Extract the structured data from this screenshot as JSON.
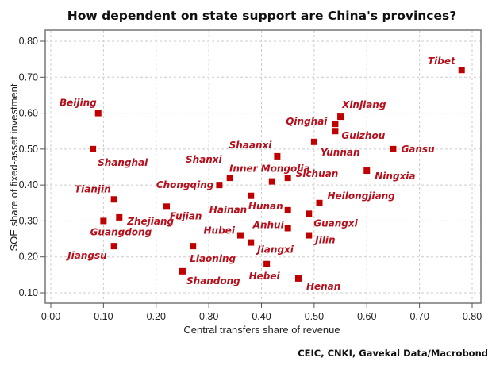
{
  "chart_data": {
    "type": "scatter",
    "title": "How dependent on state support are China's provinces?",
    "xlabel": "Central transfers share of revenue",
    "ylabel": "SOE share of fixed-asset investment",
    "source": "CEIC, CNKI, Gavekal Data/Macrobond",
    "xlim": [
      0,
      0.8
    ],
    "ylim": [
      0.1,
      0.8
    ],
    "xticks": [
      "0.00",
      "0.10",
      "0.20",
      "0.30",
      "0.40",
      "0.50",
      "0.60",
      "0.70",
      "0.80"
    ],
    "yticks": [
      "0.10",
      "0.20",
      "0.30",
      "0.40",
      "0.50",
      "0.60",
      "0.70",
      "0.80"
    ],
    "grid": true,
    "marker_color": "#c00000",
    "label_color": "#b5101c",
    "points": [
      {
        "name": "Tibet",
        "x": 0.78,
        "y": 0.72
      },
      {
        "name": "Beijing",
        "x": 0.09,
        "y": 0.6
      },
      {
        "name": "Xinjiang",
        "x": 0.55,
        "y": 0.59
      },
      {
        "name": "Qinghai",
        "x": 0.54,
        "y": 0.57
      },
      {
        "name": "Guizhou",
        "x": 0.54,
        "y": 0.55
      },
      {
        "name": "Shanghai",
        "x": 0.08,
        "y": 0.5
      },
      {
        "name": "Yunnan",
        "x": 0.5,
        "y": 0.52
      },
      {
        "name": "Gansu",
        "x": 0.65,
        "y": 0.5
      },
      {
        "name": "Shaanxi",
        "x": 0.43,
        "y": 0.48
      },
      {
        "name": "Ningxia",
        "x": 0.6,
        "y": 0.44
      },
      {
        "name": "Shanxi",
        "x": 0.34,
        "y": 0.42
      },
      {
        "name": "Inner Mongolia",
        "x": 0.42,
        "y": 0.41
      },
      {
        "name": "Sichuan",
        "x": 0.45,
        "y": 0.42
      },
      {
        "name": "Chongqing",
        "x": 0.32,
        "y": 0.4
      },
      {
        "name": "Tianjin",
        "x": 0.12,
        "y": 0.36
      },
      {
        "name": "Hainan",
        "x": 0.38,
        "y": 0.37
      },
      {
        "name": "Heilongjiang",
        "x": 0.51,
        "y": 0.35
      },
      {
        "name": "Hunan",
        "x": 0.45,
        "y": 0.33
      },
      {
        "name": "Fujian",
        "x": 0.22,
        "y": 0.34
      },
      {
        "name": "Zhejiang",
        "x": 0.13,
        "y": 0.31
      },
      {
        "name": "Guangdong",
        "x": 0.1,
        "y": 0.3
      },
      {
        "name": "Guangxi",
        "x": 0.49,
        "y": 0.32
      },
      {
        "name": "Anhui",
        "x": 0.45,
        "y": 0.28
      },
      {
        "name": "Jilin",
        "x": 0.49,
        "y": 0.26
      },
      {
        "name": "Hubei",
        "x": 0.36,
        "y": 0.26
      },
      {
        "name": "Jiangxi",
        "x": 0.38,
        "y": 0.24
      },
      {
        "name": "Jiangsu",
        "x": 0.12,
        "y": 0.23
      },
      {
        "name": "Liaoning",
        "x": 0.27,
        "y": 0.23
      },
      {
        "name": "Hebei",
        "x": 0.41,
        "y": 0.18
      },
      {
        "name": "Shandong",
        "x": 0.25,
        "y": 0.16
      },
      {
        "name": "Henan",
        "x": 0.47,
        "y": 0.14
      }
    ]
  }
}
